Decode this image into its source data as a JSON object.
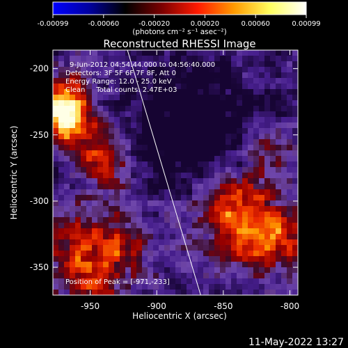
{
  "colorbar": {
    "tick_labels": [
      "-0.00099",
      "-0.00060",
      "-0.00020",
      "0.00020",
      "0.00060",
      "0.00099"
    ],
    "units_label": "(photons cm⁻² s⁻¹ asec⁻²)",
    "colors": [
      "#0000ff",
      "#0000a0",
      "#000000",
      "#7a0000",
      "#ff1a00",
      "#ff9a00",
      "#ffff60",
      "#ffffff"
    ]
  },
  "image": {
    "title": "Reconstructed RHESSI Image",
    "info_lines": [
      "9-Jun-2012 04:54:44.000 to 04:56:40.000",
      "Detectors: 3F 5F 6F 7F 8F, Att 0",
      "Energy Range: 12.0 - 25.0 keV",
      "Clean     Total counts: 2.47E+03"
    ],
    "peak_label": "Position of Peak = [-971,-233]",
    "xlabel": "Heliocentric X (arcsec)",
    "ylabel": "Heliocentric Y (arcsec)",
    "x_ticks": [
      "-950",
      "-900",
      "-850",
      "-800"
    ],
    "y_ticks": [
      "-200",
      "-250",
      "-300",
      "-350"
    ],
    "x_tick_values": [
      -950,
      -900,
      -850,
      -800
    ],
    "y_tick_values": [
      -200,
      -250,
      -300,
      -350
    ],
    "xlim": [
      -978,
      -794
    ],
    "ylim": [
      -371,
      -186
    ],
    "limb_line_endpoints": [
      [
        -922,
        -186
      ],
      [
        -867,
        -371
      ]
    ]
  },
  "footer": {
    "timestamp": "11-May-2022 13:27"
  }
}
